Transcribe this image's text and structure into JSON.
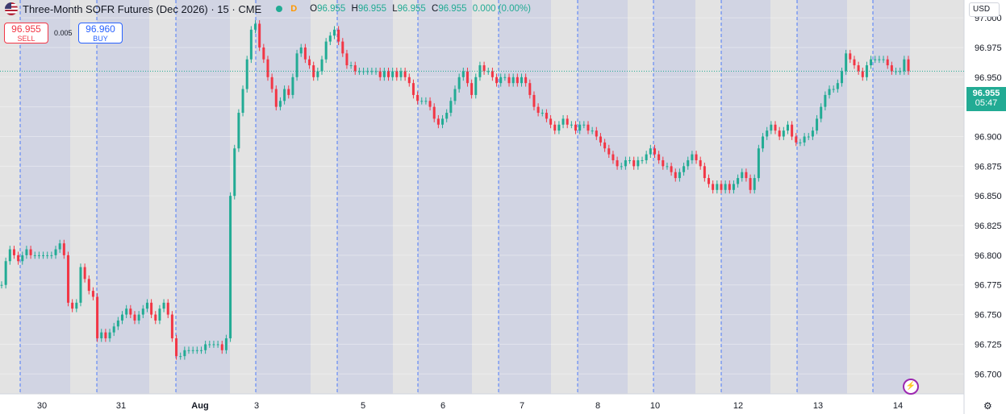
{
  "header": {
    "title": "Three-Month SOFR Futures (Dec 2026) · 15 · CME",
    "d_badge": "D",
    "ohlc": {
      "o_label": "O",
      "o": "96.955",
      "h_label": "H",
      "h": "96.955",
      "l_label": "L",
      "l": "96.955",
      "c_label": "C",
      "c": "96.955",
      "change": "0.000 (0.00%)"
    }
  },
  "trade": {
    "sell_price": "96.955",
    "sell_label": "SELL",
    "spread": "0.005",
    "buy_price": "96.960",
    "buy_label": "BUY"
  },
  "currency": "USD",
  "last_price": "96.955",
  "countdown": "05:47",
  "colors": {
    "up": "#22ab94",
    "down": "#f23645",
    "session_shade": "#d1d4e3",
    "grid": "#e6e6e6",
    "session_line": "#2962ff"
  },
  "chart_data": {
    "type": "candlestick",
    "title": "Three-Month SOFR Futures (Dec 2026) · 15 · CME",
    "ylim": [
      96.69,
      97.015
    ],
    "y_ticks": [
      "97.000",
      "96.975",
      "96.950",
      "96.925",
      "96.900",
      "96.875",
      "96.850",
      "96.825",
      "96.800",
      "96.775",
      "96.750",
      "96.725",
      "96.700"
    ],
    "x_ticks": [
      "30",
      "31",
      "Aug",
      "3",
      "5",
      "6",
      "7",
      "8",
      "10",
      "12",
      "13",
      "14"
    ],
    "last_price": 96.955,
    "grid": true,
    "close_series": [
      96.775,
      96.795,
      96.805,
      96.8,
      96.795,
      96.8,
      96.805,
      96.8,
      96.8,
      96.8,
      96.8,
      96.8,
      96.8,
      96.805,
      96.81,
      96.8,
      96.76,
      96.755,
      96.76,
      96.79,
      96.78,
      96.77,
      96.765,
      96.73,
      96.735,
      96.73,
      96.735,
      96.74,
      96.745,
      96.75,
      96.755,
      96.75,
      96.745,
      96.75,
      96.755,
      96.76,
      96.75,
      96.745,
      96.755,
      96.76,
      96.75,
      96.73,
      96.715,
      96.715,
      96.72,
      96.72,
      96.72,
      96.72,
      96.72,
      96.725,
      96.725,
      96.725,
      96.725,
      96.72,
      96.73,
      96.85,
      96.89,
      96.92,
      96.94,
      96.965,
      96.99,
      96.995,
      96.975,
      96.965,
      96.95,
      96.94,
      96.925,
      96.93,
      96.94,
      96.935,
      96.95,
      96.97,
      96.975,
      96.965,
      96.96,
      96.95,
      96.955,
      96.965,
      96.98,
      96.985,
      96.99,
      96.98,
      96.97,
      96.96,
      96.96,
      96.955,
      96.955,
      96.955,
      96.955,
      96.955,
      96.955,
      96.95,
      96.955,
      96.95,
      96.955,
      96.95,
      96.955,
      96.95,
      96.945,
      96.935,
      96.93,
      96.93,
      96.93,
      96.925,
      96.915,
      96.91,
      96.915,
      96.92,
      96.93,
      96.94,
      96.95,
      96.955,
      96.945,
      96.935,
      96.95,
      96.96,
      96.955,
      96.955,
      96.95,
      96.945,
      96.95,
      96.95,
      96.945,
      96.95,
      96.945,
      96.95,
      96.945,
      96.935,
      96.925,
      96.92,
      96.92,
      96.915,
      96.91,
      96.905,
      96.91,
      96.915,
      96.91,
      96.91,
      96.905,
      96.91,
      96.91,
      96.905,
      96.905,
      96.9,
      96.895,
      96.89,
      96.885,
      96.88,
      96.875,
      96.875,
      96.88,
      96.88,
      96.875,
      96.88,
      96.88,
      96.885,
      96.89,
      96.885,
      96.88,
      96.875,
      96.875,
      96.87,
      96.865,
      96.87,
      96.875,
      96.88,
      96.885,
      96.88,
      96.875,
      96.865,
      96.86,
      96.855,
      96.86,
      96.855,
      96.86,
      96.855,
      96.86,
      96.865,
      96.87,
      96.865,
      96.855,
      96.865,
      96.89,
      96.9,
      96.905,
      96.91,
      96.905,
      96.9,
      96.905,
      96.91,
      96.9,
      96.895,
      96.895,
      96.9,
      96.9,
      96.905,
      96.915,
      96.925,
      96.935,
      96.94,
      96.94,
      96.945,
      96.955,
      96.97,
      96.965,
      96.96,
      96.955,
      96.95,
      96.96,
      96.965,
      96.965,
      96.965,
      96.965,
      96.96,
      96.955,
      96.955,
      96.955,
      96.965,
      96.955
    ]
  }
}
